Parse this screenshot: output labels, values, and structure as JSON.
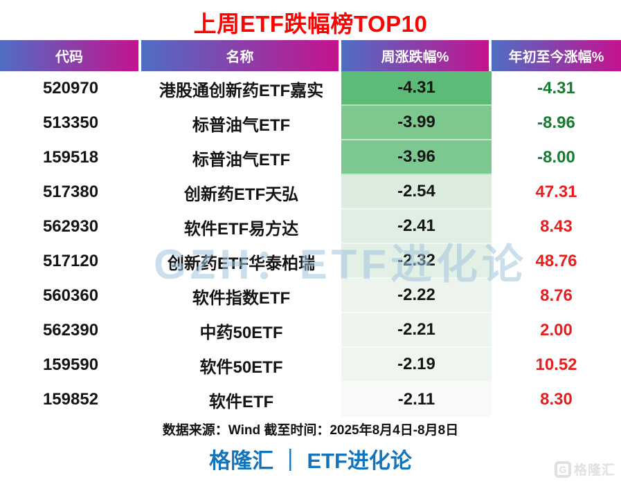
{
  "title": "上周ETF跌幅榜TOP10",
  "watermark": "GZH：ETF进化论",
  "table": {
    "columns": [
      "代码",
      "名称",
      "周涨跌幅%",
      "年初至今涨幅%"
    ],
    "rows": [
      {
        "code": "520970",
        "name": "港股通创新药ETF嘉实",
        "weekly": "-4.31",
        "ytd": "-4.31",
        "weekly_bg": "#5cbc77",
        "ytd_color": "#157d31"
      },
      {
        "code": "513350",
        "name": "标普油气ETF",
        "weekly": "-3.99",
        "ytd": "-8.96",
        "weekly_bg": "#7ec78f",
        "ytd_color": "#157d31"
      },
      {
        "code": "159518",
        "name": "标普油气ETF",
        "weekly": "-3.96",
        "ytd": "-8.00",
        "weekly_bg": "#7dc890",
        "ytd_color": "#157d31"
      },
      {
        "code": "517380",
        "name": "创新药ETF天弘",
        "weekly": "-2.54",
        "ytd": "47.31",
        "weekly_bg": "#dcede0",
        "ytd_color": "#e61e1e"
      },
      {
        "code": "562930",
        "name": "软件ETF易方达",
        "weekly": "-2.41",
        "ytd": "8.43",
        "weekly_bg": "#e0efe4",
        "ytd_color": "#e61e1e"
      },
      {
        "code": "517120",
        "name": "创新药ETF华泰柏瑞",
        "weekly": "-2.32",
        "ytd": "48.76",
        "weekly_bg": "#e3f0e6",
        "ytd_color": "#e61e1e"
      },
      {
        "code": "560360",
        "name": "软件指数ETF",
        "weekly": "-2.22",
        "ytd": "8.76",
        "weekly_bg": "#edf4ee",
        "ytd_color": "#e61e1e"
      },
      {
        "code": "562390",
        "name": "中药50ETF",
        "weekly": "-2.21",
        "ytd": "2.00",
        "weekly_bg": "#eef5ef",
        "ytd_color": "#e61e1e"
      },
      {
        "code": "159590",
        "name": "软件50ETF",
        "weekly": "-2.19",
        "ytd": "10.52",
        "weekly_bg": "#eff5ef",
        "ytd_color": "#e61e1e"
      },
      {
        "code": "159852",
        "name": "软件ETF",
        "weekly": "-2.11",
        "ytd": "8.30",
        "weekly_bg": "#f8faf8",
        "ytd_color": "#e61e1e"
      }
    ]
  },
  "footer": {
    "source": "数据来源：Wind 截至时间：2025年8月4日-8月8日",
    "brand": "格隆汇 ｜ ETF进化论",
    "logo_letter": "G",
    "logo_text": "格隆汇"
  },
  "colors": {
    "title_red": "#fe0202",
    "header_gradient_start": "#4f6ec4",
    "header_gradient_end": "#c4128e",
    "negative_green": "#157d31",
    "positive_red": "#e61e1e",
    "brand_blue": "#1373bb",
    "heat_dark_green": "#5cbc77",
    "heat_light_green": "#f8faf8"
  },
  "chart_data": {
    "type": "table",
    "title": "上周ETF跌幅榜TOP10",
    "columns": [
      "代码",
      "名称",
      "周涨跌幅%",
      "年初至今涨幅%"
    ],
    "rows": [
      [
        "520970",
        "港股通创新药ETF嘉实",
        -4.31,
        -4.31
      ],
      [
        "513350",
        "标普油气ETF",
        -3.99,
        -8.96
      ],
      [
        "159518",
        "标普油气ETF",
        -3.96,
        -8.0
      ],
      [
        "517380",
        "创新药ETF天弘",
        -2.54,
        47.31
      ],
      [
        "562930",
        "软件ETF易方达",
        -2.41,
        8.43
      ],
      [
        "517120",
        "创新药ETF华泰柏瑞",
        -2.32,
        48.76
      ],
      [
        "560360",
        "软件指数ETF",
        -2.22,
        8.76
      ],
      [
        "562390",
        "中药50ETF",
        -2.21,
        2.0
      ],
      [
        "159590",
        "软件50ETF",
        -2.19,
        10.52
      ],
      [
        "159852",
        "软件ETF",
        -2.11,
        8.3
      ]
    ],
    "notes": "周涨跌幅% column uses a green heat scale (darkest = biggest decline); 年初至今涨幅% negative values green, positive values red",
    "source": "数据来源：Wind 截至时间：2025年8月4日-8月8日"
  }
}
